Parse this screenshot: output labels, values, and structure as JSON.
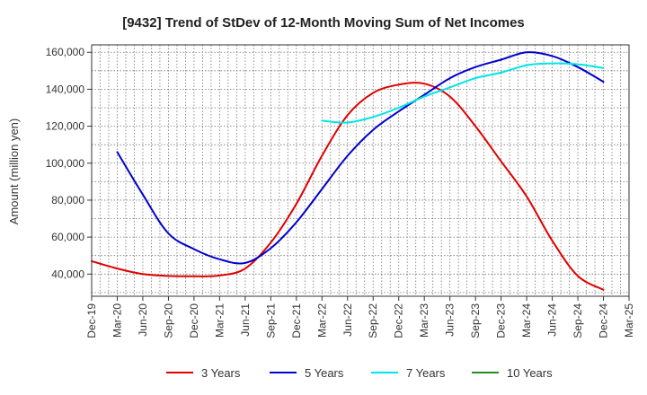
{
  "chart_data": {
    "type": "line",
    "title": "[9432]  Trend of StDev of 12-Month Moving Sum of Net Incomes",
    "xlabel": "",
    "ylabel": "Amount (million yen)",
    "x_tick_labels": [
      "Dec-19",
      "Mar-20",
      "Jun-20",
      "Sep-20",
      "Dec-20",
      "Mar-21",
      "Jun-21",
      "Sep-21",
      "Dec-21",
      "Mar-22",
      "Jun-22",
      "Sep-22",
      "Dec-22",
      "Mar-23",
      "Jun-23",
      "Sep-23",
      "Dec-23",
      "Mar-24",
      "Jun-24",
      "Sep-24",
      "Dec-24",
      "Mar-25"
    ],
    "y_tick_labels": [
      "40,000",
      "60,000",
      "80,000",
      "100,000",
      "120,000",
      "140,000",
      "160,000"
    ],
    "y_ticks": [
      40000,
      60000,
      80000,
      100000,
      120000,
      140000,
      160000
    ],
    "ylim": [
      28000,
      164000
    ],
    "grid": true,
    "legend_position": "bottom",
    "series": [
      {
        "name": "3 Years",
        "color": "#e00000",
        "points": [
          [
            "Dec-19",
            47000
          ],
          [
            "Mar-20",
            43000
          ],
          [
            "Jun-20",
            40000
          ],
          [
            "Sep-20",
            39000
          ],
          [
            "Dec-20",
            38800
          ],
          [
            "Mar-21",
            39200
          ],
          [
            "Jun-21",
            43000
          ],
          [
            "Sep-21",
            57000
          ],
          [
            "Dec-21",
            78000
          ],
          [
            "Mar-22",
            104000
          ],
          [
            "Jun-22",
            126000
          ],
          [
            "Sep-22",
            138000
          ],
          [
            "Dec-22",
            142500
          ],
          [
            "Mar-23",
            143000
          ],
          [
            "Jun-23",
            136000
          ],
          [
            "Sep-23",
            120000
          ],
          [
            "Dec-23",
            101000
          ],
          [
            "Mar-24",
            82000
          ],
          [
            "Jun-24",
            58000
          ],
          [
            "Sep-24",
            39000
          ],
          [
            "Dec-24",
            31500
          ]
        ]
      },
      {
        "name": "5 Years",
        "color": "#0000cc",
        "points": [
          [
            "Mar-20",
            106000
          ],
          [
            "Jun-20",
            83000
          ],
          [
            "Sep-20",
            62000
          ],
          [
            "Dec-20",
            53500
          ],
          [
            "Mar-21",
            48000
          ],
          [
            "Jun-21",
            46000
          ],
          [
            "Sep-21",
            54000
          ],
          [
            "Dec-21",
            68000
          ],
          [
            "Mar-22",
            86000
          ],
          [
            "Jun-22",
            104000
          ],
          [
            "Sep-22",
            118000
          ],
          [
            "Dec-22",
            128000
          ],
          [
            "Mar-23",
            137000
          ],
          [
            "Jun-23",
            146000
          ],
          [
            "Sep-23",
            152000
          ],
          [
            "Dec-23",
            156000
          ],
          [
            "Mar-24",
            160000
          ],
          [
            "Jun-24",
            158000
          ],
          [
            "Sep-24",
            152000
          ],
          [
            "Dec-24",
            144000
          ]
        ]
      },
      {
        "name": "7 Years",
        "color": "#00e5e5",
        "points": [
          [
            "Mar-22",
            123000
          ],
          [
            "Jun-22",
            122000
          ],
          [
            "Sep-22",
            125000
          ],
          [
            "Dec-22",
            130000
          ],
          [
            "Mar-23",
            136000
          ],
          [
            "Jun-23",
            141000
          ],
          [
            "Sep-23",
            146000
          ],
          [
            "Dec-23",
            149000
          ],
          [
            "Mar-24",
            153000
          ],
          [
            "Jun-24",
            154000
          ],
          [
            "Sep-24",
            153500
          ],
          [
            "Dec-24",
            151500
          ]
        ]
      },
      {
        "name": "10 Years",
        "color": "#228b22",
        "points": []
      }
    ]
  }
}
